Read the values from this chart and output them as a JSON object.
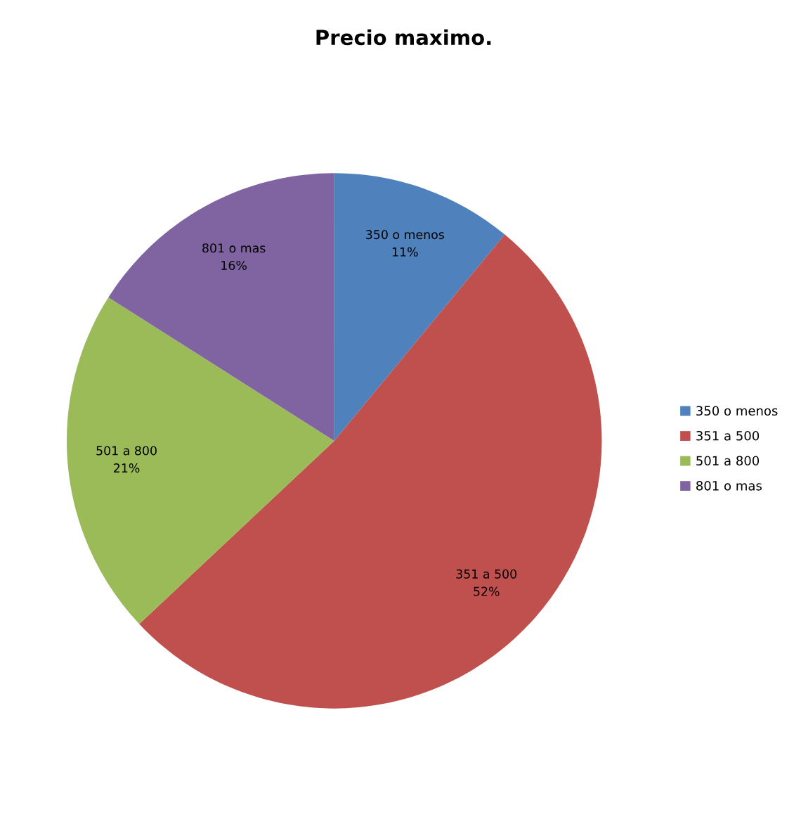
{
  "chart_data": {
    "type": "pie",
    "title": "Precio maximo.",
    "categories": [
      "350 o menos",
      "351 a 500",
      "501 a 800",
      "801 o mas"
    ],
    "values": [
      11,
      52,
      21,
      16
    ],
    "value_labels": [
      "11%",
      "52%",
      "21%",
      "16%"
    ],
    "colors": [
      "#4f81bd",
      "#c0504d",
      "#9bbb59",
      "#8064a2"
    ],
    "legend": "right"
  }
}
